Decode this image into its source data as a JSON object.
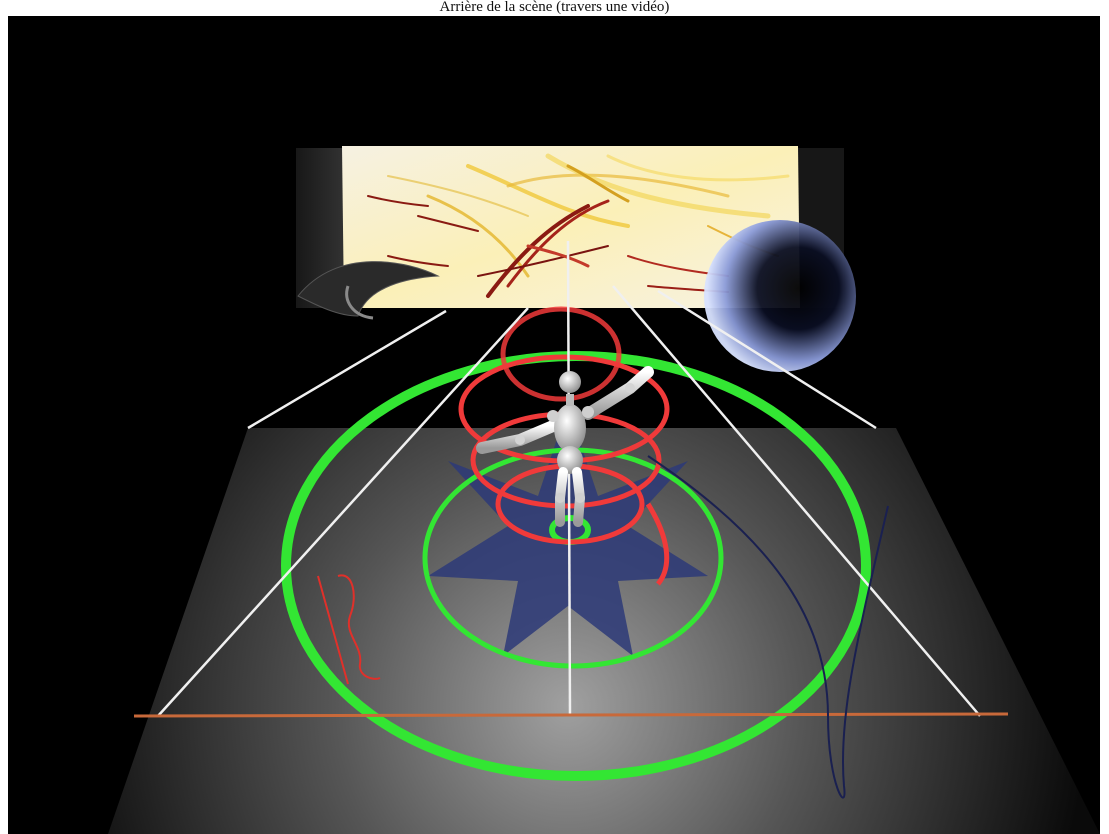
{
  "caption": {
    "text": "Arrière de la scène (travers une vidéo)"
  },
  "scene": {
    "background_color": "#000000",
    "floor_color_center": "#9a9a9a",
    "floor_color_edge": "#0a0a0a",
    "green_ring_color": "#33e633",
    "red_spiral_color": "#f03a3a",
    "rope_color": "#c8693a",
    "star_color": "#2d3a78",
    "sphere_color": "#b8c8f0",
    "beam_color": "#ffffff"
  }
}
